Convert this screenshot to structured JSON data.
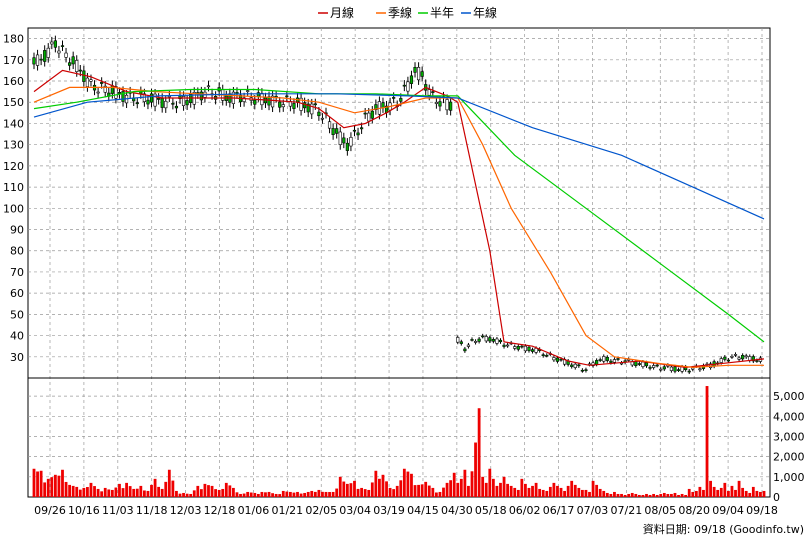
{
  "chart_data": {
    "type": "candlestick",
    "legend": [
      {
        "name": "月線",
        "color": "#cc0000"
      },
      {
        "name": "季線",
        "color": "#ff6600"
      },
      {
        "name": "半年",
        "color": "#00cc00"
      },
      {
        "name": "年線",
        "color": "#0055cc"
      }
    ],
    "x_tick_labels": [
      "09/26",
      "10/16",
      "11/03",
      "11/18",
      "12/03",
      "12/18",
      "01/06",
      "01/21",
      "02/05",
      "03/04",
      "03/19",
      "04/15",
      "04/30",
      "05/18",
      "06/02",
      "06/17",
      "07/03",
      "07/21",
      "08/05",
      "08/20",
      "09/04",
      "09/18"
    ],
    "price_axis": {
      "min": 20,
      "max": 185,
      "ticks": [
        30,
        40,
        50,
        60,
        70,
        80,
        90,
        100,
        110,
        120,
        130,
        140,
        150,
        160,
        170,
        180
      ]
    },
    "volume_axis": {
      "min": 0,
      "max": 5700,
      "ticks": [
        0,
        1000,
        2000,
        3000,
        4000,
        5000
      ],
      "tick_labels": [
        "0",
        "1,000",
        "2,000",
        "3,000",
        "4,000",
        "5,000"
      ]
    },
    "price_segments": [
      {
        "name": "before_split",
        "start_index": 0,
        "points": [
          [
            0,
            168
          ],
          [
            3,
            172
          ],
          [
            6,
            178
          ],
          [
            9,
            172
          ],
          [
            13,
            165
          ],
          [
            16,
            158
          ],
          [
            20,
            156
          ],
          [
            24,
            154
          ],
          [
            27,
            152
          ],
          [
            31,
            152
          ],
          [
            34,
            151
          ],
          [
            38,
            150
          ],
          [
            41,
            150
          ],
          [
            45,
            152
          ],
          [
            48,
            155
          ],
          [
            52,
            154
          ],
          [
            55,
            152
          ],
          [
            58,
            153
          ],
          [
            62,
            152
          ],
          [
            66,
            151
          ],
          [
            70,
            150
          ],
          [
            73,
            150
          ],
          [
            77,
            148
          ],
          [
            80,
            146
          ],
          [
            83,
            140
          ],
          [
            86,
            133
          ],
          [
            88,
            130
          ],
          [
            90,
            134
          ],
          [
            93,
            142
          ],
          [
            96,
            147
          ],
          [
            99,
            148
          ],
          [
            102,
            150
          ],
          [
            105,
            158
          ],
          [
            107,
            165
          ],
          [
            109,
            162
          ],
          [
            112,
            152
          ],
          [
            115,
            150
          ],
          [
            118,
            148
          ]
        ]
      },
      {
        "name": "after_split",
        "start_index": 119,
        "points": [
          [
            119,
            38
          ],
          [
            121,
            34
          ],
          [
            123,
            37
          ],
          [
            126,
            39
          ],
          [
            129,
            38
          ],
          [
            132,
            36
          ],
          [
            135,
            35
          ],
          [
            138,
            34
          ],
          [
            141,
            33
          ],
          [
            144,
            31
          ],
          [
            147,
            29
          ],
          [
            150,
            27
          ],
          [
            153,
            25
          ],
          [
            155,
            24
          ],
          [
            157,
            27
          ],
          [
            160,
            29
          ],
          [
            163,
            28
          ],
          [
            166,
            28
          ],
          [
            169,
            27
          ],
          [
            172,
            26
          ],
          [
            175,
            25
          ],
          [
            178,
            25
          ],
          [
            181,
            24
          ],
          [
            184,
            24
          ],
          [
            187,
            25
          ],
          [
            190,
            26
          ],
          [
            193,
            28
          ],
          [
            196,
            30
          ],
          [
            199,
            30
          ],
          [
            202,
            29
          ],
          [
            205,
            28
          ]
        ]
      }
    ],
    "moving_averages": [
      {
        "name": "月線",
        "color": "#cc0000",
        "points": [
          [
            0,
            155
          ],
          [
            8,
            165
          ],
          [
            16,
            162
          ],
          [
            26,
            155
          ],
          [
            36,
            152
          ],
          [
            46,
            152
          ],
          [
            56,
            152
          ],
          [
            66,
            151
          ],
          [
            74,
            150
          ],
          [
            80,
            147
          ],
          [
            87,
            138
          ],
          [
            93,
            140
          ],
          [
            99,
            145
          ],
          [
            104,
            150
          ],
          [
            110,
            157
          ],
          [
            116,
            153
          ],
          [
            119,
            150
          ],
          [
            128,
            80
          ],
          [
            132,
            37
          ],
          [
            140,
            35
          ],
          [
            150,
            28
          ],
          [
            156,
            26
          ],
          [
            170,
            28
          ],
          [
            183,
            25
          ],
          [
            194,
            27
          ],
          [
            205,
            29
          ]
        ]
      },
      {
        "name": "季線",
        "color": "#ff6600",
        "points": [
          [
            0,
            150
          ],
          [
            10,
            157
          ],
          [
            22,
            157
          ],
          [
            34,
            155
          ],
          [
            46,
            154
          ],
          [
            58,
            153
          ],
          [
            70,
            152
          ],
          [
            80,
            150
          ],
          [
            90,
            145
          ],
          [
            100,
            148
          ],
          [
            110,
            152
          ],
          [
            119,
            152
          ],
          [
            126,
            130
          ],
          [
            134,
            100
          ],
          [
            145,
            70
          ],
          [
            155,
            40
          ],
          [
            163,
            30
          ],
          [
            175,
            27
          ],
          [
            185,
            25
          ],
          [
            195,
            26
          ],
          [
            205,
            26
          ]
        ]
      },
      {
        "name": "半年",
        "color": "#00cc00",
        "points": [
          [
            0,
            147
          ],
          [
            12,
            150
          ],
          [
            28,
            155
          ],
          [
            44,
            156
          ],
          [
            62,
            156
          ],
          [
            80,
            154
          ],
          [
            96,
            154
          ],
          [
            110,
            153
          ],
          [
            119,
            153
          ],
          [
            135,
            125
          ],
          [
            155,
            100
          ],
          [
            175,
            75
          ],
          [
            195,
            50
          ],
          [
            205,
            37
          ]
        ]
      },
      {
        "name": "年線",
        "color": "#0055cc",
        "points": [
          [
            0,
            143
          ],
          [
            15,
            150
          ],
          [
            35,
            153
          ],
          [
            60,
            154
          ],
          [
            85,
            154
          ],
          [
            105,
            153
          ],
          [
            119,
            152
          ],
          [
            140,
            138
          ],
          [
            165,
            125
          ],
          [
            185,
            110
          ],
          [
            205,
            95
          ]
        ]
      }
    ],
    "volume": [
      [
        0,
        1400
      ],
      [
        2,
        1300
      ],
      [
        4,
        900
      ],
      [
        6,
        1100
      ],
      [
        8,
        1350
      ],
      [
        10,
        600
      ],
      [
        12,
        500
      ],
      [
        14,
        450
      ],
      [
        16,
        700
      ],
      [
        18,
        400
      ],
      [
        20,
        450
      ],
      [
        22,
        350
      ],
      [
        24,
        650
      ],
      [
        26,
        700
      ],
      [
        28,
        400
      ],
      [
        30,
        550
      ],
      [
        32,
        300
      ],
      [
        34,
        900
      ],
      [
        36,
        400
      ],
      [
        38,
        1350
      ],
      [
        40,
        300
      ],
      [
        42,
        200
      ],
      [
        44,
        150
      ],
      [
        46,
        550
      ],
      [
        48,
        650
      ],
      [
        50,
        550
      ],
      [
        52,
        350
      ],
      [
        54,
        700
      ],
      [
        56,
        450
      ],
      [
        58,
        150
      ],
      [
        60,
        250
      ],
      [
        62,
        200
      ],
      [
        64,
        250
      ],
      [
        66,
        250
      ],
      [
        68,
        150
      ],
      [
        70,
        300
      ],
      [
        72,
        250
      ],
      [
        74,
        250
      ],
      [
        76,
        200
      ],
      [
        78,
        300
      ],
      [
        80,
        350
      ],
      [
        82,
        250
      ],
      [
        84,
        250
      ],
      [
        86,
        1000
      ],
      [
        88,
        650
      ],
      [
        90,
        800
      ],
      [
        92,
        450
      ],
      [
        94,
        350
      ],
      [
        96,
        1300
      ],
      [
        98,
        1100
      ],
      [
        100,
        450
      ],
      [
        102,
        550
      ],
      [
        104,
        1400
      ],
      [
        106,
        1150
      ],
      [
        108,
        600
      ],
      [
        110,
        750
      ],
      [
        112,
        450
      ],
      [
        114,
        250
      ],
      [
        116,
        700
      ],
      [
        118,
        1200
      ],
      [
        119,
        700
      ],
      [
        120,
        900
      ],
      [
        121,
        1350
      ],
      [
        122,
        550
      ],
      [
        124,
        2700
      ],
      [
        125,
        4400
      ],
      [
        126,
        1000
      ],
      [
        127,
        700
      ],
      [
        128,
        1400
      ],
      [
        129,
        900
      ],
      [
        130,
        550
      ],
      [
        131,
        700
      ],
      [
        132,
        1000
      ],
      [
        133,
        650
      ],
      [
        134,
        550
      ],
      [
        135,
        450
      ],
      [
        136,
        350
      ],
      [
        137,
        900
      ],
      [
        138,
        650
      ],
      [
        139,
        450
      ],
      [
        140,
        550
      ],
      [
        141,
        700
      ],
      [
        142,
        400
      ],
      [
        143,
        350
      ],
      [
        144,
        300
      ],
      [
        145,
        500
      ],
      [
        146,
        700
      ],
      [
        147,
        550
      ],
      [
        148,
        450
      ],
      [
        149,
        300
      ],
      [
        150,
        550
      ],
      [
        151,
        800
      ],
      [
        152,
        600
      ],
      [
        153,
        450
      ],
      [
        154,
        350
      ],
      [
        155,
        350
      ],
      [
        156,
        250
      ],
      [
        157,
        800
      ],
      [
        158,
        600
      ],
      [
        159,
        400
      ],
      [
        160,
        300
      ],
      [
        161,
        200
      ],
      [
        162,
        150
      ],
      [
        163,
        250
      ],
      [
        164,
        150
      ],
      [
        165,
        150
      ],
      [
        166,
        100
      ],
      [
        167,
        150
      ],
      [
        168,
        200
      ],
      [
        169,
        150
      ],
      [
        170,
        100
      ],
      [
        171,
        100
      ],
      [
        172,
        150
      ],
      [
        173,
        100
      ],
      [
        174,
        150
      ],
      [
        175,
        100
      ],
      [
        176,
        150
      ],
      [
        177,
        200
      ],
      [
        178,
        150
      ],
      [
        179,
        150
      ],
      [
        180,
        200
      ],
      [
        181,
        100
      ],
      [
        182,
        150
      ],
      [
        183,
        100
      ],
      [
        184,
        400
      ],
      [
        185,
        250
      ],
      [
        186,
        300
      ],
      [
        187,
        500
      ],
      [
        188,
        350
      ],
      [
        189,
        5500
      ],
      [
        190,
        800
      ],
      [
        191,
        500
      ],
      [
        192,
        350
      ],
      [
        193,
        450
      ],
      [
        194,
        700
      ],
      [
        195,
        300
      ],
      [
        196,
        550
      ],
      [
        197,
        350
      ],
      [
        198,
        800
      ],
      [
        199,
        450
      ],
      [
        200,
        300
      ],
      [
        201,
        200
      ],
      [
        202,
        500
      ],
      [
        203,
        300
      ],
      [
        204,
        250
      ],
      [
        205,
        300
      ]
    ],
    "total_points": 206
  },
  "footer": {
    "text": "資料日期: 09/18 (Goodinfo.tw)"
  }
}
